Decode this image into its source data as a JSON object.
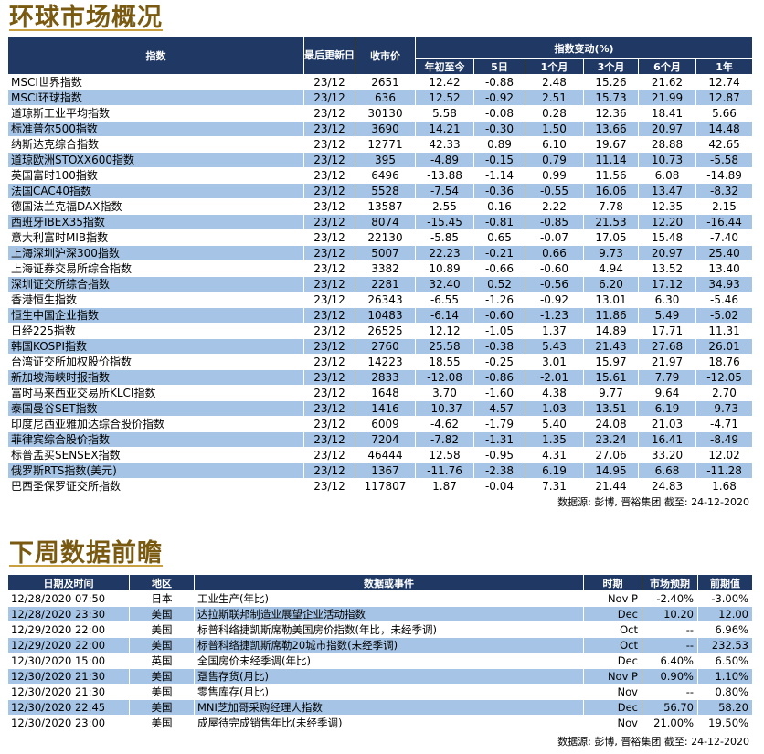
{
  "section1": {
    "title": "环球市场概况"
  },
  "market_headers": {
    "index": "指数",
    "last_update": "最后更新日",
    "close": "收市价",
    "change_group": "指数变动(%)",
    "ytd": "年初至今",
    "d5": "5日",
    "m1": "1个月",
    "m3": "3个月",
    "m6": "6个月",
    "y1": "1年"
  },
  "market_rows": [
    [
      "MSCI世界指数",
      "23/12",
      "2651",
      "12.42",
      "-0.88",
      "2.48",
      "15.26",
      "21.62",
      "12.74"
    ],
    [
      "MSCI环球指数",
      "23/12",
      "636",
      "12.52",
      "-0.92",
      "2.51",
      "15.73",
      "21.99",
      "12.87"
    ],
    [
      "道琼斯工业平均指数",
      "23/12",
      "30130",
      "5.58",
      "-0.08",
      "0.28",
      "12.36",
      "18.41",
      "5.66"
    ],
    [
      "标准普尔500指数",
      "23/12",
      "3690",
      "14.21",
      "-0.30",
      "1.50",
      "13.66",
      "20.97",
      "14.48"
    ],
    [
      "纳斯达克综合指数",
      "23/12",
      "12771",
      "42.33",
      "0.89",
      "6.10",
      "19.67",
      "28.88",
      "42.65"
    ],
    [
      "道琼欧洲STOXX600指数",
      "23/12",
      "395",
      "-4.89",
      "-0.15",
      "0.79",
      "11.14",
      "10.73",
      "-5.58"
    ],
    [
      "英国富时100指数",
      "23/12",
      "6496",
      "-13.88",
      "-1.14",
      "0.99",
      "11.56",
      "6.08",
      "-14.89"
    ],
    [
      "法国CAC40指数",
      "23/12",
      "5528",
      "-7.54",
      "-0.36",
      "-0.55",
      "16.06",
      "13.47",
      "-8.32"
    ],
    [
      "德国法兰克福DAX指数",
      "23/12",
      "13587",
      "2.55",
      "0.16",
      "2.22",
      "7.78",
      "12.35",
      "2.15"
    ],
    [
      "西班牙IBEX35指数",
      "23/12",
      "8074",
      "-15.45",
      "-0.81",
      "-0.85",
      "21.53",
      "12.20",
      "-16.44"
    ],
    [
      "意大利富时MIB指数",
      "23/12",
      "22130",
      "-5.85",
      "0.65",
      "-0.07",
      "17.05",
      "15.48",
      "-7.40"
    ],
    [
      "上海深圳沪深300指数",
      "23/12",
      "5007",
      "22.23",
      "-0.21",
      "0.66",
      "9.73",
      "20.97",
      "25.40"
    ],
    [
      "上海证券交易所综合指数",
      "23/12",
      "3382",
      "10.89",
      "-0.66",
      "-0.60",
      "4.94",
      "13.52",
      "13.40"
    ],
    [
      "深圳证交所综合指数",
      "23/12",
      "2281",
      "32.40",
      "0.52",
      "-0.56",
      "6.20",
      "17.12",
      "34.93"
    ],
    [
      "香港恒生指数",
      "23/12",
      "26343",
      "-6.55",
      "-1.26",
      "-0.92",
      "13.01",
      "6.30",
      "-5.46"
    ],
    [
      "恒生中国企业指数",
      "23/12",
      "10483",
      "-6.14",
      "-0.60",
      "-1.23",
      "11.86",
      "5.49",
      "-5.02"
    ],
    [
      "日经225指数",
      "23/12",
      "26525",
      "12.12",
      "-1.05",
      "1.37",
      "14.89",
      "17.71",
      "11.31"
    ],
    [
      "韩国KOSPI指数",
      "23/12",
      "2760",
      "25.58",
      "-0.38",
      "5.43",
      "21.43",
      "27.68",
      "26.01"
    ],
    [
      "台湾证交所加权股价指数",
      "23/12",
      "14223",
      "18.55",
      "-0.25",
      "3.01",
      "15.97",
      "21.97",
      "18.76"
    ],
    [
      "新加坡海峡时报指数",
      "23/12",
      "2833",
      "-12.08",
      "-0.86",
      "-2.01",
      "15.61",
      "7.79",
      "-12.05"
    ],
    [
      "富时马来西亚交易所KLCI指数",
      "23/12",
      "1648",
      "3.70",
      "-1.60",
      "4.38",
      "9.77",
      "9.64",
      "2.70"
    ],
    [
      "泰国曼谷SET指数",
      "23/12",
      "1416",
      "-10.37",
      "-4.57",
      "1.03",
      "13.51",
      "6.19",
      "-9.73"
    ],
    [
      "印度尼西亚雅加达综合股价指数",
      "23/12",
      "6009",
      "-4.62",
      "-1.79",
      "5.40",
      "24.08",
      "21.03",
      "-4.71"
    ],
    [
      "菲律宾综合股价指数",
      "23/12",
      "7204",
      "-7.82",
      "-1.31",
      "1.35",
      "23.24",
      "16.41",
      "-8.49"
    ],
    [
      "标普孟买SENSEX指数",
      "23/12",
      "46444",
      "12.58",
      "-0.95",
      "4.31",
      "27.06",
      "33.20",
      "12.02"
    ],
    [
      "俄罗斯RTS指数(美元)",
      "23/12",
      "1367",
      "-11.76",
      "-2.38",
      "6.19",
      "14.95",
      "6.68",
      "-11.28"
    ],
    [
      "巴西圣保罗证交所指数",
      "23/12",
      "117807",
      "1.87",
      "-0.04",
      "7.31",
      "21.44",
      "24.83",
      "1.68"
    ]
  ],
  "source1": "数据源: 彭博, 晋裕集团 截至: 24-12-2020",
  "section2": {
    "title": "下周数据前瞻"
  },
  "weekly_headers": {
    "datetime": "日期及时间",
    "region": "地区",
    "event": "数据或事件",
    "period": "时期",
    "forecast": "市场预期",
    "previous": "前期值"
  },
  "weekly_rows": [
    [
      "12/28/2020 07:50",
      "日本",
      "工业生产(年比)",
      "Nov P",
      "-2.40%",
      "-3.00%"
    ],
    [
      "12/28/2020 23:30",
      "美国",
      "达拉斯联邦制造业展望企业活动指数",
      "Dec",
      "10.20",
      "12.00"
    ],
    [
      "12/29/2020 22:00",
      "美国",
      "标普科络捷凯斯席勒美国房价指数(年比，未经季调)",
      "Oct",
      "--",
      "6.96%"
    ],
    [
      "12/29/2020 22:00",
      "美国",
      "标普科络捷凯斯席勒20城市指数(未经季调)",
      "Oct",
      "--",
      "232.53"
    ],
    [
      "12/30/2020 15:00",
      "英国",
      "全国房价未经季调(年比)",
      "Dec",
      "6.40%",
      "6.50%"
    ],
    [
      "12/30/2020 21:30",
      "美国",
      "趸售存货(月比)",
      "Nov P",
      "0.90%",
      "1.10%"
    ],
    [
      "12/30/2020 21:30",
      "美国",
      "零售库存(月比)",
      "Nov",
      "--",
      "0.80%"
    ],
    [
      "12/30/2020 22:45",
      "美国",
      "MNI芝加哥采购经理人指数",
      "Dec",
      "56.70",
      "58.20"
    ],
    [
      "12/30/2020 23:00",
      "美国",
      "成屋待完成销售年比(未经季调)",
      "Nov",
      "21.00%",
      "19.50%"
    ]
  ],
  "source2": "数据源: 彭博, 晋裕集团 截至: 24-12-2020"
}
